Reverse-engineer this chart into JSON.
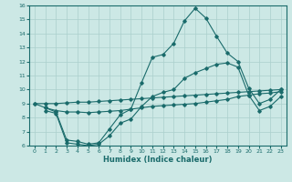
{
  "xlabel": "Humidex (Indice chaleur)",
  "bg_color": "#cce8e5",
  "line_color": "#1a6b6b",
  "xlim": [
    -0.5,
    23.5
  ],
  "ylim": [
    6,
    16
  ],
  "yticks": [
    6,
    7,
    8,
    9,
    10,
    11,
    12,
    13,
    14,
    15,
    16
  ],
  "xticks": [
    0,
    1,
    2,
    3,
    4,
    5,
    6,
    7,
    8,
    9,
    10,
    11,
    12,
    13,
    14,
    15,
    16,
    17,
    18,
    19,
    20,
    21,
    22,
    23
  ],
  "line1_x": [
    0,
    1,
    2,
    3,
    4,
    5,
    6,
    7,
    8,
    9,
    10,
    11,
    12,
    13,
    14,
    15,
    16,
    17,
    18,
    19,
    20,
    21,
    22,
    23
  ],
  "line1_y": [
    9.0,
    9.0,
    9.0,
    9.05,
    9.1,
    9.1,
    9.15,
    9.2,
    9.25,
    9.3,
    9.35,
    9.4,
    9.45,
    9.5,
    9.55,
    9.6,
    9.65,
    9.7,
    9.75,
    9.8,
    9.85,
    9.9,
    9.95,
    10.0
  ],
  "line2_x": [
    0,
    1,
    2,
    3,
    4,
    5,
    6,
    7,
    8,
    9,
    10,
    11,
    12,
    13,
    14,
    15,
    16,
    17,
    18,
    19,
    20,
    21,
    22,
    23
  ],
  "line2_y": [
    9.0,
    8.7,
    8.5,
    8.4,
    8.4,
    8.35,
    8.4,
    8.45,
    8.5,
    8.6,
    8.7,
    8.8,
    8.85,
    8.9,
    8.95,
    9.0,
    9.1,
    9.2,
    9.3,
    9.5,
    9.6,
    9.7,
    9.75,
    9.85
  ],
  "line3_x": [
    1,
    2,
    3,
    4,
    5,
    6,
    7,
    8,
    9,
    10,
    11,
    12,
    13,
    14,
    15,
    16,
    17,
    18,
    19,
    20,
    21,
    22,
    23
  ],
  "line3_y": [
    8.7,
    8.4,
    6.4,
    6.3,
    6.1,
    6.2,
    7.2,
    8.2,
    8.6,
    10.5,
    12.3,
    12.5,
    13.3,
    14.9,
    15.8,
    15.1,
    13.8,
    12.6,
    12.0,
    10.1,
    9.0,
    9.3,
    10.0
  ],
  "line4_x": [
    1,
    2,
    3,
    4,
    5,
    6,
    7,
    8,
    9,
    10,
    11,
    12,
    13,
    14,
    15,
    16,
    17,
    18,
    19,
    20,
    21,
    22,
    23
  ],
  "line4_y": [
    8.5,
    8.3,
    6.2,
    6.1,
    6.0,
    6.1,
    6.7,
    7.6,
    7.9,
    8.8,
    9.5,
    9.8,
    10.0,
    10.8,
    11.2,
    11.5,
    11.8,
    11.9,
    11.6,
    9.6,
    8.5,
    8.8,
    9.5
  ],
  "grid_color": "#aacfcc"
}
